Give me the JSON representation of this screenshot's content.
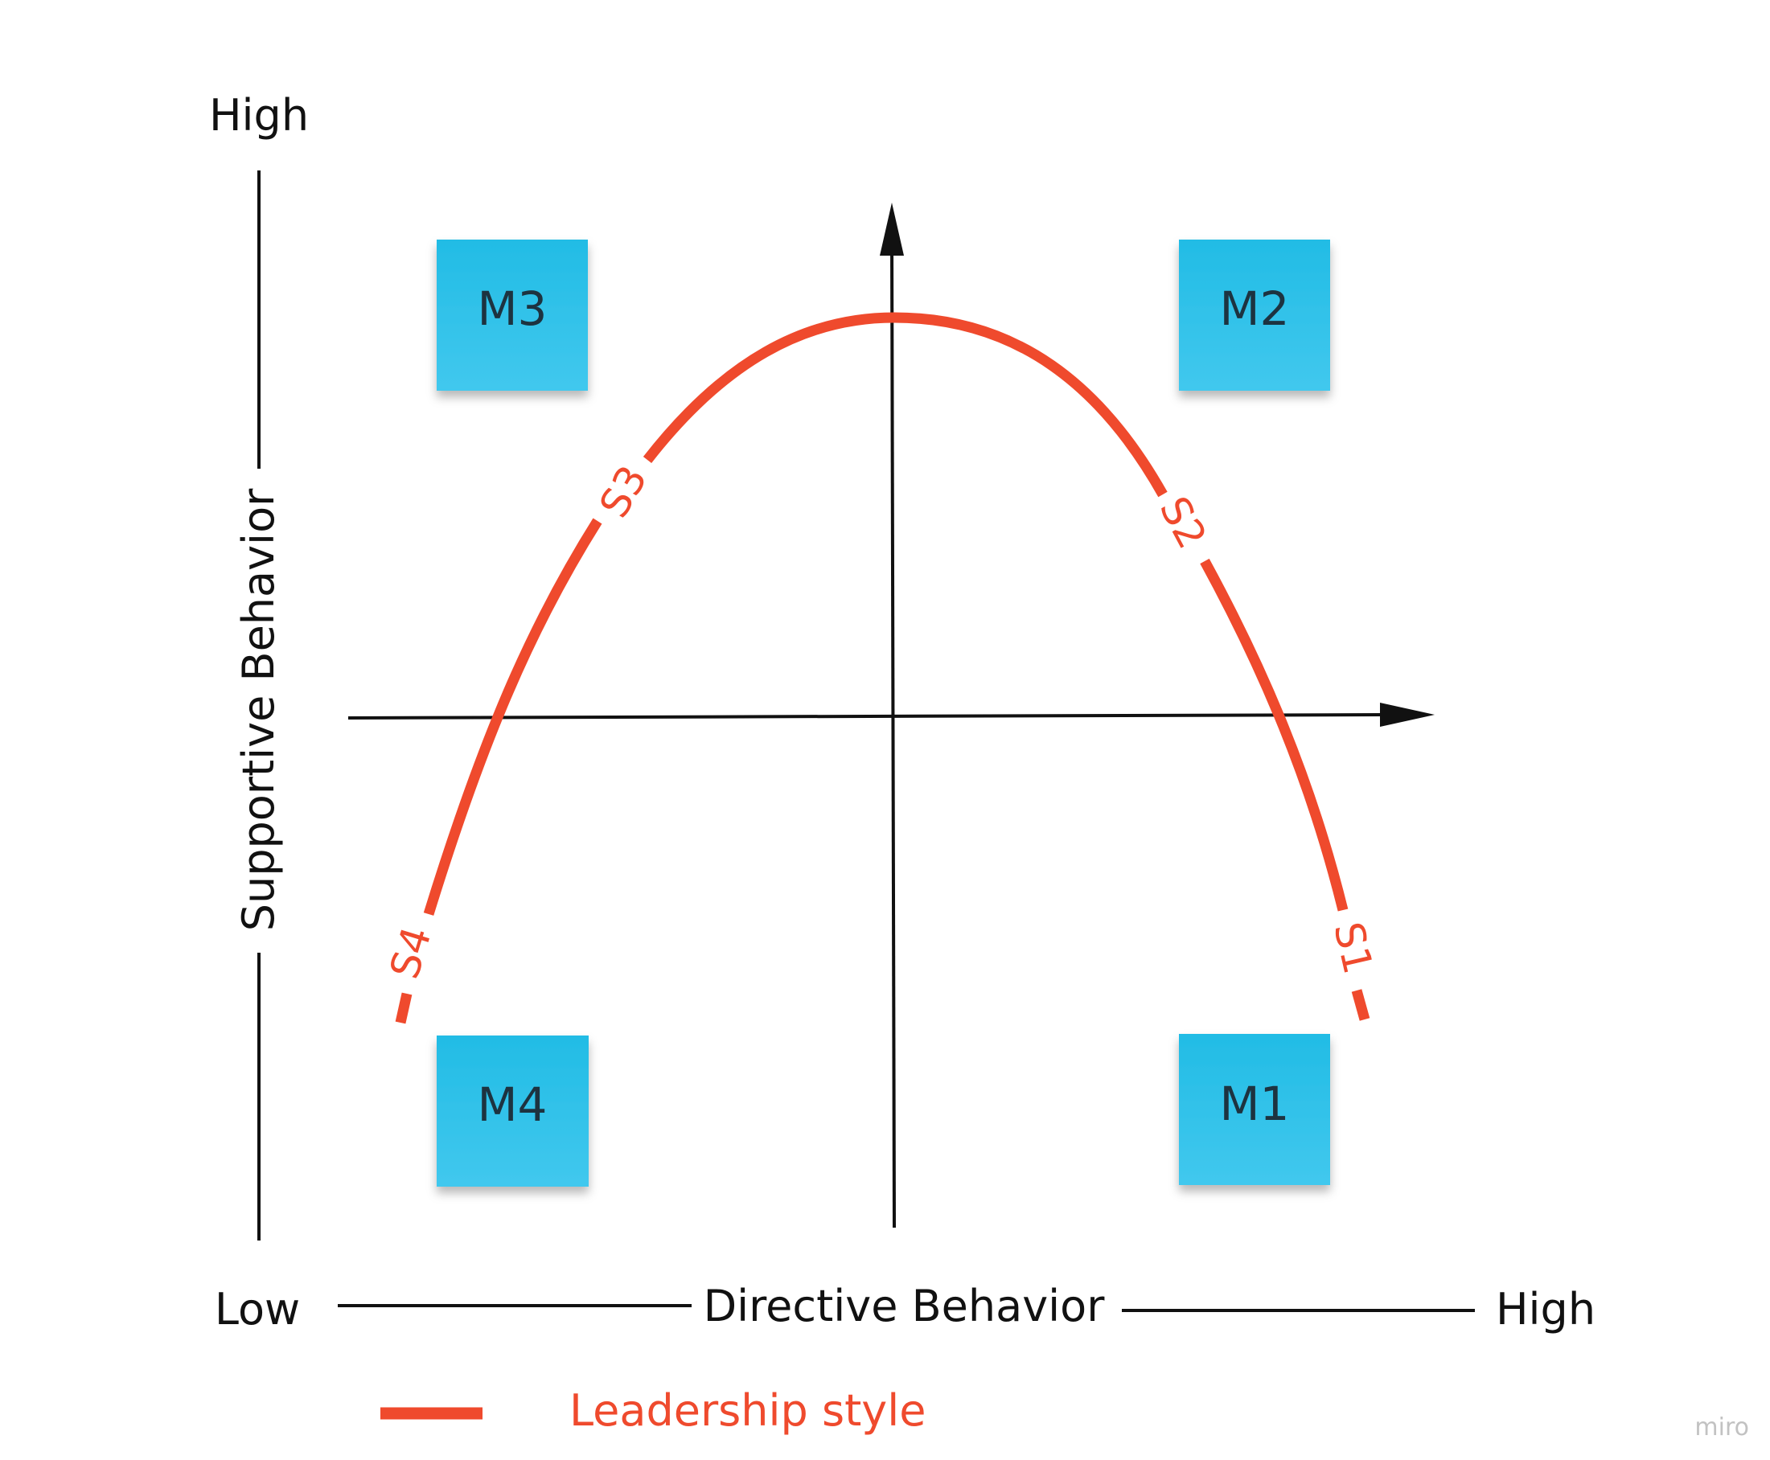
{
  "y_axis": {
    "high_label": "High",
    "title": "Supportive Behavior"
  },
  "x_axis": {
    "low_label": "Low",
    "title": "Directive Behavior",
    "high_label": "High"
  },
  "stickies": {
    "m3": "M3",
    "m2": "M2",
    "m4": "M4",
    "m1": "M1"
  },
  "curve_labels": {
    "s1": "S1",
    "s2": "S2",
    "s3": "S3",
    "s4": "S4"
  },
  "legend": {
    "label": "Leadership style"
  },
  "watermark": "miro",
  "colors": {
    "curve": "#ef4a2d",
    "sticky": "#2bbfe6",
    "axis": "#111111",
    "sticky_text": "#1d3340"
  }
}
